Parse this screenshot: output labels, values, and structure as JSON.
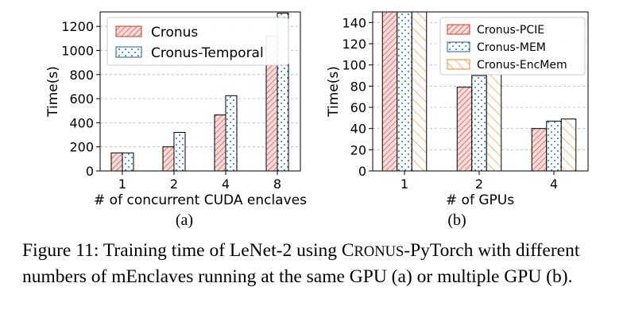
{
  "colors": {
    "red_edge": "#c0392b",
    "red_fill": "#fbdada",
    "blue_edge": "#1f5f8b",
    "blue_dot": "#3d8fc9",
    "orange_edge": "#e8871e",
    "grid": "#b5b5b5"
  },
  "chart_data": [
    {
      "type": "bar",
      "panel_label": "(a)",
      "categories": [
        "1",
        "2",
        "4",
        "8"
      ],
      "series": [
        {
          "name": "Cronus",
          "values": [
            150,
            200,
            465,
            1120
          ],
          "pattern": "red-hatch"
        },
        {
          "name": "Cronus-Temporal",
          "values": [
            150,
            320,
            625,
            1310
          ],
          "pattern": "blue-dots"
        }
      ],
      "xlabel": "# of concurrent CUDA enclaves",
      "ylabel": "Time(s)",
      "ylim": [
        0,
        1320
      ],
      "yticks": [
        "0",
        "200",
        "400",
        "600",
        "800",
        "1000",
        "1200"
      ],
      "grid": "horizontal dashed",
      "legend_position": "top-left"
    },
    {
      "type": "bar",
      "panel_label": "(b)",
      "categories": [
        "1",
        "2",
        "4"
      ],
      "series": [
        {
          "name": "Cronus-PCIE",
          "values": [
            150,
            79,
            40
          ],
          "pattern": "red-hatch"
        },
        {
          "name": "Cronus-MEM",
          "values": [
            150,
            90,
            47
          ],
          "pattern": "blue-dots"
        },
        {
          "name": "Cronus-EncMem",
          "values": [
            150,
            94,
            49
          ],
          "pattern": "orange-hatch"
        }
      ],
      "xlabel": "# of GPUs",
      "ylabel": "Time(s)",
      "ylim": [
        0,
        150
      ],
      "yticks": [
        "0",
        "20",
        "40",
        "60",
        "80",
        "100",
        "120",
        "140"
      ],
      "grid": "horizontal dashed",
      "legend_position": "top-right"
    }
  ],
  "caption": {
    "lead": "Figure 11: Training time of LeNet-2 using C",
    "sc": "RONUS",
    "tail": "-PyTorch with different numbers of mEnclaves running at the same GPU (a) or multiple GPU (b)."
  }
}
